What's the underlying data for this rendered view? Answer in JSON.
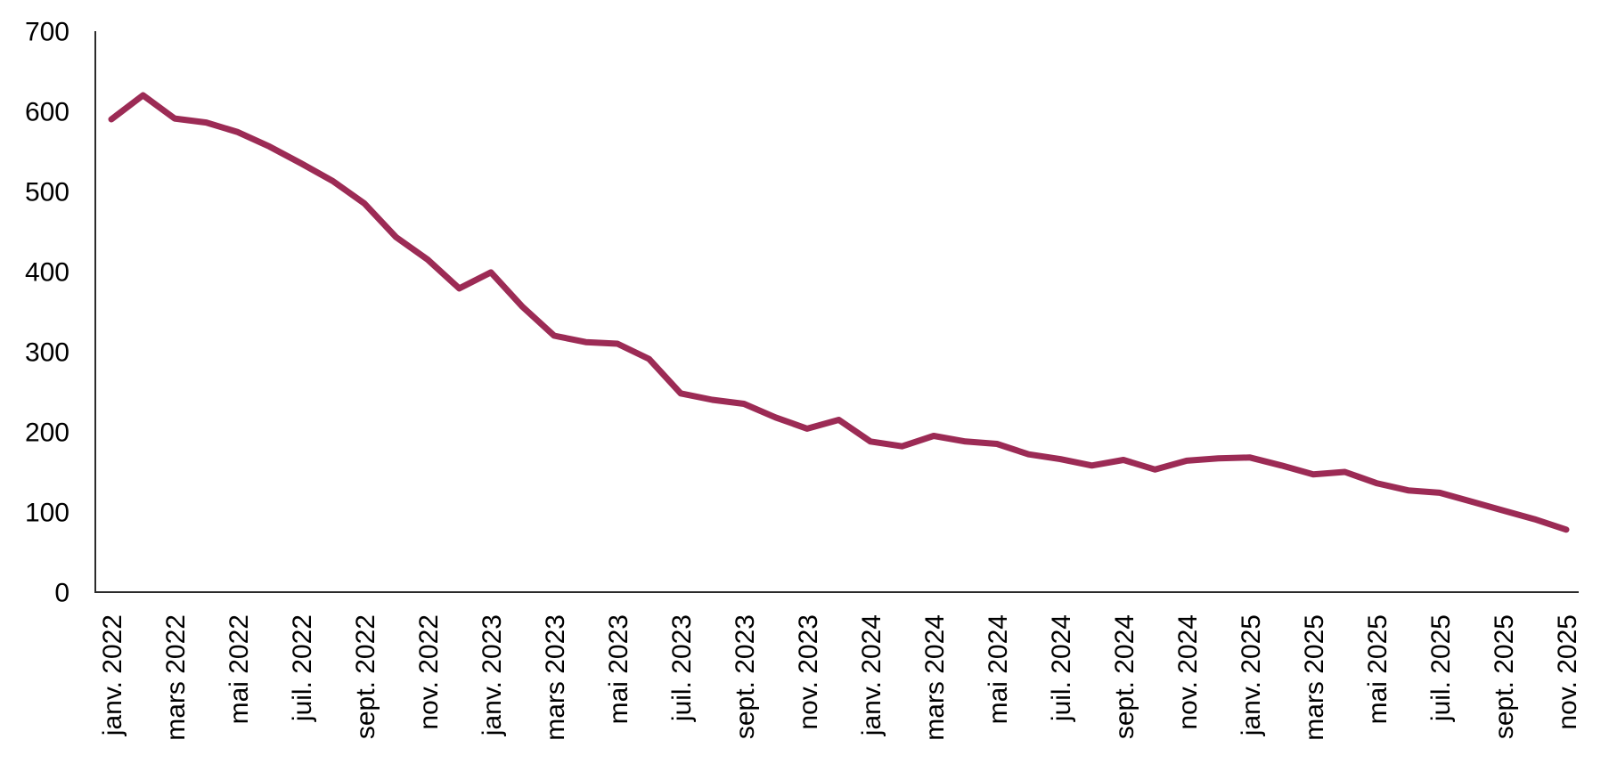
{
  "page": {
    "background": "#ffffff"
  },
  "chart_data": {
    "type": "line",
    "title": "",
    "xlabel": "",
    "ylabel": "",
    "ylim": [
      0,
      700
    ],
    "y_ticks": [
      0,
      100,
      200,
      300,
      400,
      500,
      600,
      700
    ],
    "grid": false,
    "legend_position": "none",
    "x_tick_labels": [
      "janv. 2022",
      "mars 2022",
      "mai 2022",
      "juil. 2022",
      "sept. 2022",
      "nov. 2022",
      "janv. 2023",
      "mars 2023",
      "mai 2023",
      "juil. 2023",
      "sept. 2023",
      "nov. 2023",
      "janv. 2024",
      "mars 2024",
      "mai 2024",
      "juil. 2024",
      "sept. 2024",
      "nov. 2024",
      "janv. 2025",
      "mars 2025",
      "mai 2025",
      "juil. 2025",
      "sept. 2025",
      "nov. 2025"
    ],
    "months": [
      "janv. 2022",
      "févr. 2022",
      "mars 2022",
      "avr. 2022",
      "mai 2022",
      "juin 2022",
      "juil. 2022",
      "août 2022",
      "sept. 2022",
      "oct. 2022",
      "nov. 2022",
      "déc. 2022",
      "janv. 2023",
      "févr. 2023",
      "mars 2023",
      "avr. 2023",
      "mai 2023",
      "juin 2023",
      "juil. 2023",
      "août 2023",
      "sept. 2023",
      "oct. 2023",
      "nov. 2023",
      "déc. 2023",
      "janv. 2024",
      "févr. 2024",
      "mars 2024",
      "avr. 2024",
      "mai 2024",
      "juin 2024",
      "juil. 2024",
      "août 2024",
      "sept. 2024",
      "oct. 2024",
      "nov. 2024",
      "déc. 2024",
      "janv. 2025",
      "févr. 2025",
      "mars 2025",
      "avr. 2025",
      "mai 2025",
      "juin 2025",
      "juil. 2025",
      "août 2025",
      "sept. 2025",
      "oct. 2025",
      "nov. 2025"
    ],
    "series": [
      {
        "name": "valeur-mensuelle",
        "values": [
          590,
          620,
          591,
          586,
          574,
          556,
          535,
          513,
          485,
          443,
          415,
          379,
          399,
          356,
          320,
          312,
          310,
          291,
          248,
          240,
          235,
          218,
          204,
          215,
          188,
          182,
          195,
          188,
          185,
          172,
          166,
          158,
          165,
          153,
          164,
          167,
          168,
          158,
          147,
          150,
          136,
          127,
          124,
          113,
          102,
          91,
          78
        ]
      }
    ],
    "line_color": "#9C2B55",
    "axis_color": "#2b2b2b",
    "text_color": "#000000"
  }
}
